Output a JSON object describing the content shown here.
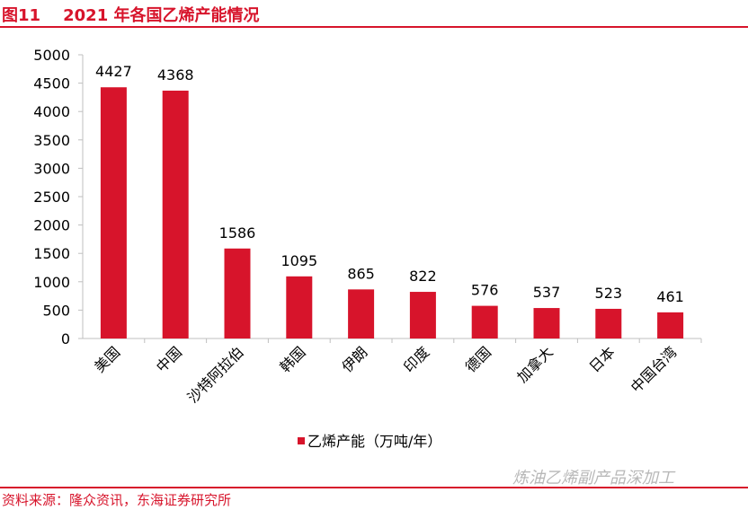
{
  "header": {
    "title": "图11    2021 年各国乙烯产能情况"
  },
  "footer": {
    "source": "资料来源：隆众资讯，东海证券研究所",
    "watermark": "炼油乙烯副产品深加工"
  },
  "colors": {
    "accent": "#d7142b",
    "bar": "#d7142b"
  },
  "chart_data": {
    "type": "bar",
    "categories": [
      "美国",
      "中国",
      "沙特阿拉伯",
      "韩国",
      "伊朗",
      "印度",
      "德国",
      "加拿大",
      "日本",
      "中国台湾"
    ],
    "series": [
      {
        "name": "乙烯产能（万吨/年）",
        "values": [
          4427,
          4368,
          1586,
          1095,
          865,
          822,
          576,
          537,
          523,
          461
        ]
      }
    ],
    "ylim": [
      0,
      5000
    ],
    "yticks": [
      0,
      500,
      1000,
      1500,
      2000,
      2500,
      3000,
      3500,
      4000,
      4500,
      5000
    ],
    "grid": false,
    "legend": "bottom"
  }
}
